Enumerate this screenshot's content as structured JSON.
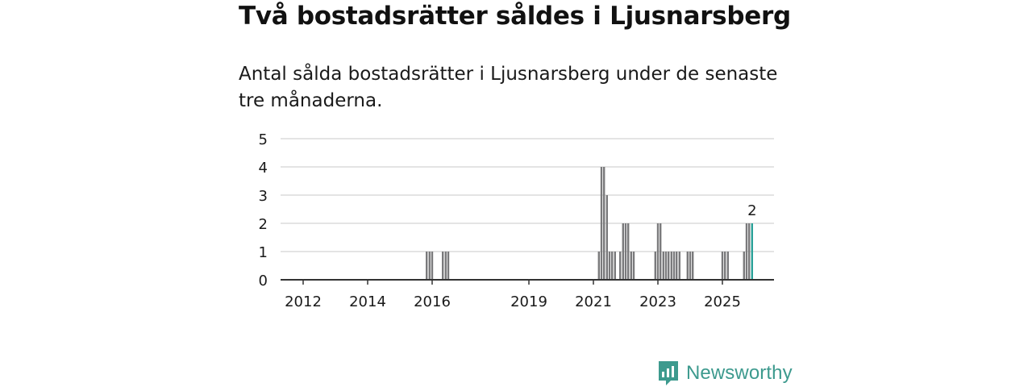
{
  "title": "Två bostadsrätter såldes i Ljusnarsberg",
  "subtitle": "Antal sålda bostadsrätter i Ljusnarsberg under de senaste tre månaderna.",
  "brand": {
    "name": "Newsworthy",
    "icon": "newsworthy-logo-icon",
    "color": "#3d9a8e"
  },
  "colors": {
    "bar": "#7a7a7c",
    "highlight": "#2aa198",
    "grid": "#dcdcdc",
    "axis": "#333333"
  },
  "chart_data": {
    "type": "bar",
    "title": "Två bostadsrätter såldes i Ljusnarsberg",
    "subtitle": "Antal sålda bostadsrätter i Ljusnarsberg under de senaste tre månaderna.",
    "xlabel": "",
    "ylabel": "",
    "ylim": [
      0,
      5
    ],
    "yticks": [
      0,
      1,
      2,
      3,
      4,
      5
    ],
    "xlim": [
      2011.3,
      2026.6
    ],
    "xticks": [
      {
        "value": 2012,
        "label": "2012"
      },
      {
        "value": 2014,
        "label": "2014"
      },
      {
        "value": 2016,
        "label": "2016"
      },
      {
        "value": 2019,
        "label": "2019"
      },
      {
        "value": 2021,
        "label": "2021"
      },
      {
        "value": 2023,
        "label": "2023"
      },
      {
        "value": 2025,
        "label": "2025"
      }
    ],
    "grid": true,
    "bars": [
      {
        "x": 2015.83,
        "value": 1
      },
      {
        "x": 2015.92,
        "value": 1
      },
      {
        "x": 2016.0,
        "value": 1
      },
      {
        "x": 2016.33,
        "value": 1
      },
      {
        "x": 2016.42,
        "value": 1
      },
      {
        "x": 2016.5,
        "value": 1
      },
      {
        "x": 2021.17,
        "value": 1
      },
      {
        "x": 2021.25,
        "value": 4
      },
      {
        "x": 2021.33,
        "value": 4
      },
      {
        "x": 2021.42,
        "value": 3
      },
      {
        "x": 2021.5,
        "value": 1
      },
      {
        "x": 2021.58,
        "value": 1
      },
      {
        "x": 2021.67,
        "value": 1
      },
      {
        "x": 2021.83,
        "value": 1
      },
      {
        "x": 2021.92,
        "value": 2
      },
      {
        "x": 2022.0,
        "value": 2
      },
      {
        "x": 2022.08,
        "value": 2
      },
      {
        "x": 2022.17,
        "value": 1
      },
      {
        "x": 2022.25,
        "value": 1
      },
      {
        "x": 2022.92,
        "value": 1
      },
      {
        "x": 2023.0,
        "value": 2
      },
      {
        "x": 2023.08,
        "value": 2
      },
      {
        "x": 2023.17,
        "value": 1
      },
      {
        "x": 2023.25,
        "value": 1
      },
      {
        "x": 2023.33,
        "value": 1
      },
      {
        "x": 2023.42,
        "value": 1
      },
      {
        "x": 2023.5,
        "value": 1
      },
      {
        "x": 2023.58,
        "value": 1
      },
      {
        "x": 2023.67,
        "value": 1
      },
      {
        "x": 2023.92,
        "value": 1
      },
      {
        "x": 2024.0,
        "value": 1
      },
      {
        "x": 2024.08,
        "value": 1
      },
      {
        "x": 2025.0,
        "value": 1
      },
      {
        "x": 2025.08,
        "value": 1
      },
      {
        "x": 2025.17,
        "value": 1
      },
      {
        "x": 2025.67,
        "value": 1
      },
      {
        "x": 2025.75,
        "value": 2
      },
      {
        "x": 2025.83,
        "value": 2
      },
      {
        "x": 2025.92,
        "value": 2,
        "highlight": true,
        "label": "2"
      }
    ]
  }
}
